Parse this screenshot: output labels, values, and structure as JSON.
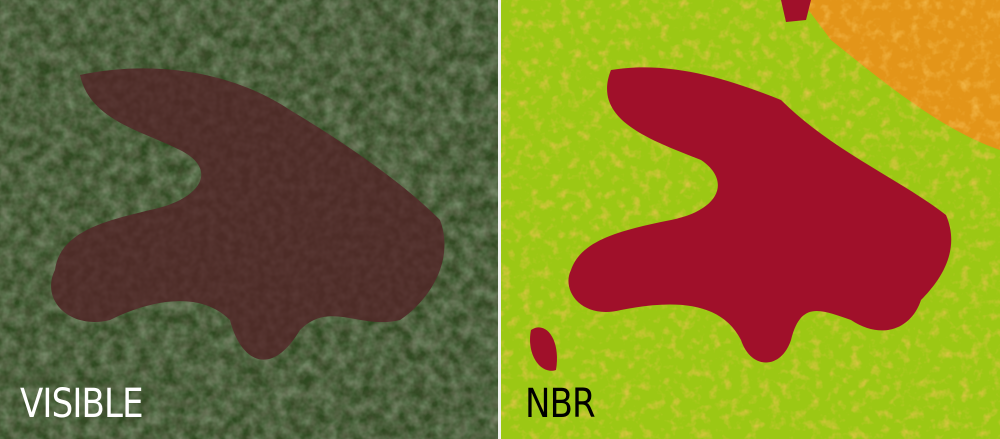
{
  "panels": {
    "left": {
      "label": "VISIBLE",
      "colors": {
        "vegetation": "#2f4a22",
        "burn_scar": "#4a2a26",
        "bare": "#8a8a6a"
      }
    },
    "right": {
      "label": "NBR",
      "colors": {
        "vegetation": "#9cc814",
        "moderate": "#f08c1a",
        "severe": "#a0102a",
        "light": "#e0f0a0"
      }
    }
  }
}
